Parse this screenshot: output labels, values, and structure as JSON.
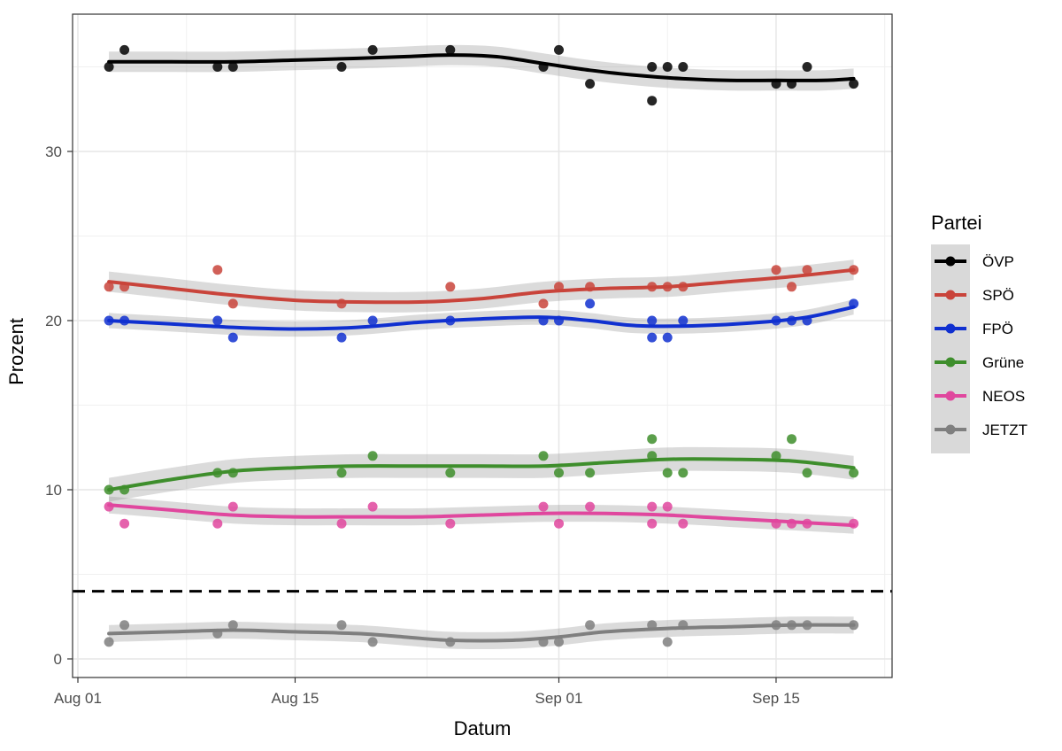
{
  "chart_data": {
    "type": "scatter",
    "title": "",
    "xlabel": "Datum",
    "ylabel": "Prozent",
    "x_ticks": [
      {
        "day": 0,
        "label": "Aug 01"
      },
      {
        "day": 14,
        "label": "Aug 15"
      },
      {
        "day": 31,
        "label": "Sep 01"
      },
      {
        "day": 45,
        "label": "Sep 15"
      }
    ],
    "y_ticks": [
      0,
      10,
      20,
      30
    ],
    "xlim": [
      -2,
      52
    ],
    "ylim": [
      -1.1,
      38.2
    ],
    "grid": true,
    "threshold_line": {
      "y": 4,
      "style": "dashed",
      "color": "#000000"
    },
    "legend": {
      "title": "Partei",
      "position": "right"
    },
    "series": [
      {
        "name": "ÖVP",
        "color": "#000000",
        "band": 0.6,
        "points": [
          [
            2,
            35
          ],
          [
            3,
            36
          ],
          [
            9,
            35
          ],
          [
            10,
            35
          ],
          [
            17,
            35
          ],
          [
            19,
            36
          ],
          [
            24,
            36
          ],
          [
            30,
            35
          ],
          [
            31,
            36
          ],
          [
            33,
            34
          ],
          [
            37,
            35
          ],
          [
            37,
            33
          ],
          [
            38,
            35
          ],
          [
            39,
            35
          ],
          [
            45,
            34
          ],
          [
            46,
            34
          ],
          [
            47,
            35
          ],
          [
            50,
            34
          ]
        ],
        "smooth": [
          [
            2,
            35.3
          ],
          [
            6,
            35.3
          ],
          [
            10,
            35.3
          ],
          [
            14,
            35.4
          ],
          [
            18,
            35.5
          ],
          [
            21,
            35.6
          ],
          [
            24,
            35.7
          ],
          [
            27,
            35.6
          ],
          [
            30,
            35.2
          ],
          [
            33,
            34.8
          ],
          [
            36,
            34.5
          ],
          [
            39,
            34.3
          ],
          [
            42,
            34.2
          ],
          [
            45,
            34.2
          ],
          [
            48,
            34.2
          ],
          [
            50,
            34.3
          ]
        ]
      },
      {
        "name": "SPÖ",
        "color": "#c9443b",
        "band": 0.6,
        "points": [
          [
            2,
            22
          ],
          [
            3,
            22
          ],
          [
            9,
            23
          ],
          [
            10,
            21
          ],
          [
            17,
            21
          ],
          [
            24,
            22
          ],
          [
            30,
            21
          ],
          [
            31,
            22
          ],
          [
            33,
            22
          ],
          [
            37,
            22
          ],
          [
            38,
            22
          ],
          [
            39,
            22
          ],
          [
            45,
            23
          ],
          [
            46,
            22
          ],
          [
            47,
            23
          ],
          [
            50,
            23
          ]
        ],
        "smooth": [
          [
            2,
            22.3
          ],
          [
            6,
            21.9
          ],
          [
            10,
            21.5
          ],
          [
            14,
            21.2
          ],
          [
            18,
            21.1
          ],
          [
            22,
            21.1
          ],
          [
            26,
            21.3
          ],
          [
            30,
            21.7
          ],
          [
            34,
            21.9
          ],
          [
            38,
            22.0
          ],
          [
            42,
            22.3
          ],
          [
            46,
            22.6
          ],
          [
            50,
            23.0
          ]
        ]
      },
      {
        "name": "FPÖ",
        "color": "#1030d0",
        "band": 0.45,
        "points": [
          [
            2,
            20
          ],
          [
            3,
            20
          ],
          [
            9,
            20
          ],
          [
            10,
            19
          ],
          [
            17,
            19
          ],
          [
            19,
            20
          ],
          [
            24,
            20
          ],
          [
            30,
            20
          ],
          [
            31,
            20
          ],
          [
            33,
            21
          ],
          [
            37,
            20
          ],
          [
            37,
            19
          ],
          [
            38,
            19
          ],
          [
            39,
            20
          ],
          [
            45,
            20
          ],
          [
            46,
            20
          ],
          [
            47,
            20
          ],
          [
            50,
            21
          ]
        ],
        "smooth": [
          [
            2,
            20.0
          ],
          [
            6,
            19.8
          ],
          [
            10,
            19.6
          ],
          [
            14,
            19.5
          ],
          [
            18,
            19.6
          ],
          [
            22,
            19.9
          ],
          [
            26,
            20.1
          ],
          [
            30,
            20.2
          ],
          [
            33,
            20.0
          ],
          [
            36,
            19.7
          ],
          [
            40,
            19.7
          ],
          [
            44,
            19.9
          ],
          [
            47,
            20.2
          ],
          [
            50,
            20.8
          ]
        ]
      },
      {
        "name": "Grüne",
        "color": "#3e8e2c",
        "band": 0.7,
        "points": [
          [
            2,
            10
          ],
          [
            3,
            10
          ],
          [
            9,
            11
          ],
          [
            10,
            11
          ],
          [
            17,
            11
          ],
          [
            19,
            12
          ],
          [
            24,
            11
          ],
          [
            30,
            12
          ],
          [
            31,
            11
          ],
          [
            33,
            11
          ],
          [
            37,
            13
          ],
          [
            37,
            12
          ],
          [
            38,
            11
          ],
          [
            39,
            11
          ],
          [
            45,
            12
          ],
          [
            46,
            13
          ],
          [
            47,
            11
          ],
          [
            50,
            11
          ]
        ],
        "smooth": [
          [
            2,
            10.0
          ],
          [
            6,
            10.6
          ],
          [
            10,
            11.1
          ],
          [
            14,
            11.3
          ],
          [
            18,
            11.4
          ],
          [
            22,
            11.4
          ],
          [
            26,
            11.4
          ],
          [
            30,
            11.4
          ],
          [
            34,
            11.6
          ],
          [
            38,
            11.8
          ],
          [
            42,
            11.8
          ],
          [
            46,
            11.7
          ],
          [
            50,
            11.3
          ]
        ]
      },
      {
        "name": "NEOS",
        "color": "#e0479e",
        "band": 0.5,
        "points": [
          [
            2,
            9
          ],
          [
            3,
            8
          ],
          [
            9,
            8
          ],
          [
            10,
            9
          ],
          [
            17,
            8
          ],
          [
            19,
            9
          ],
          [
            24,
            8
          ],
          [
            30,
            9
          ],
          [
            31,
            8
          ],
          [
            33,
            9
          ],
          [
            37,
            9
          ],
          [
            37,
            8
          ],
          [
            38,
            9
          ],
          [
            39,
            8
          ],
          [
            45,
            8
          ],
          [
            46,
            8
          ],
          [
            47,
            8
          ],
          [
            50,
            8
          ]
        ],
        "smooth": [
          [
            2,
            9.1
          ],
          [
            6,
            8.8
          ],
          [
            10,
            8.5
          ],
          [
            14,
            8.4
          ],
          [
            18,
            8.4
          ],
          [
            22,
            8.4
          ],
          [
            26,
            8.5
          ],
          [
            30,
            8.6
          ],
          [
            34,
            8.6
          ],
          [
            38,
            8.5
          ],
          [
            42,
            8.3
          ],
          [
            46,
            8.1
          ],
          [
            50,
            7.9
          ]
        ]
      },
      {
        "name": "JETZT",
        "color": "#7f7f7f",
        "band": 0.5,
        "points": [
          [
            2,
            1
          ],
          [
            3,
            2
          ],
          [
            9,
            1.5
          ],
          [
            10,
            2
          ],
          [
            17,
            2
          ],
          [
            19,
            1
          ],
          [
            24,
            1
          ],
          [
            30,
            1
          ],
          [
            31,
            1
          ],
          [
            33,
            2
          ],
          [
            37,
            2
          ],
          [
            38,
            1
          ],
          [
            39,
            2
          ],
          [
            45,
            2
          ],
          [
            46,
            2
          ],
          [
            47,
            2
          ],
          [
            50,
            2
          ]
        ],
        "smooth": [
          [
            2,
            1.5
          ],
          [
            6,
            1.6
          ],
          [
            10,
            1.7
          ],
          [
            14,
            1.6
          ],
          [
            18,
            1.5
          ],
          [
            21,
            1.3
          ],
          [
            24,
            1.1
          ],
          [
            28,
            1.1
          ],
          [
            31,
            1.3
          ],
          [
            34,
            1.6
          ],
          [
            38,
            1.8
          ],
          [
            42,
            1.9
          ],
          [
            46,
            2.0
          ],
          [
            50,
            2.0
          ]
        ]
      }
    ]
  }
}
